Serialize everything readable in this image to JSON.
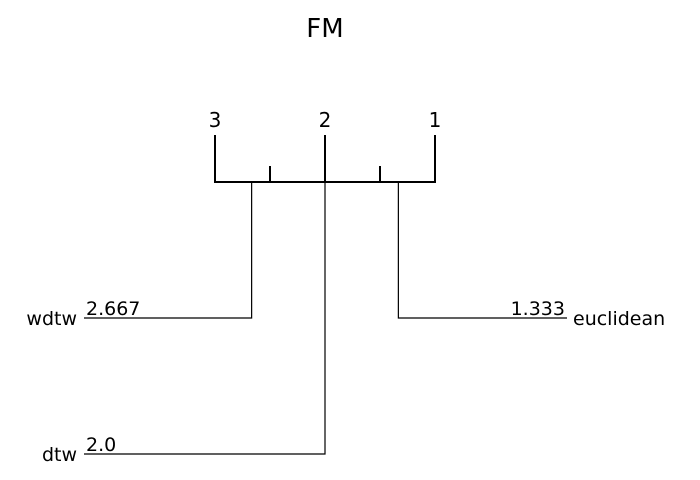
{
  "title": "FM",
  "chart_data": {
    "type": "critical-difference",
    "title": "FM",
    "axis": {
      "min": 1,
      "max": 3,
      "reversed": true,
      "major_ticks": [
        "3",
        "2",
        "1"
      ],
      "minor_ticks": [
        2.5,
        1.5
      ]
    },
    "methods": [
      {
        "name": "wdtw",
        "rank": 2.667,
        "rank_label": "2.667",
        "side": "left"
      },
      {
        "name": "dtw",
        "rank": 2.0,
        "rank_label": "2.0",
        "side": "left"
      },
      {
        "name": "euclidean",
        "rank": 1.333,
        "rank_label": "1.333",
        "side": "right"
      }
    ]
  }
}
